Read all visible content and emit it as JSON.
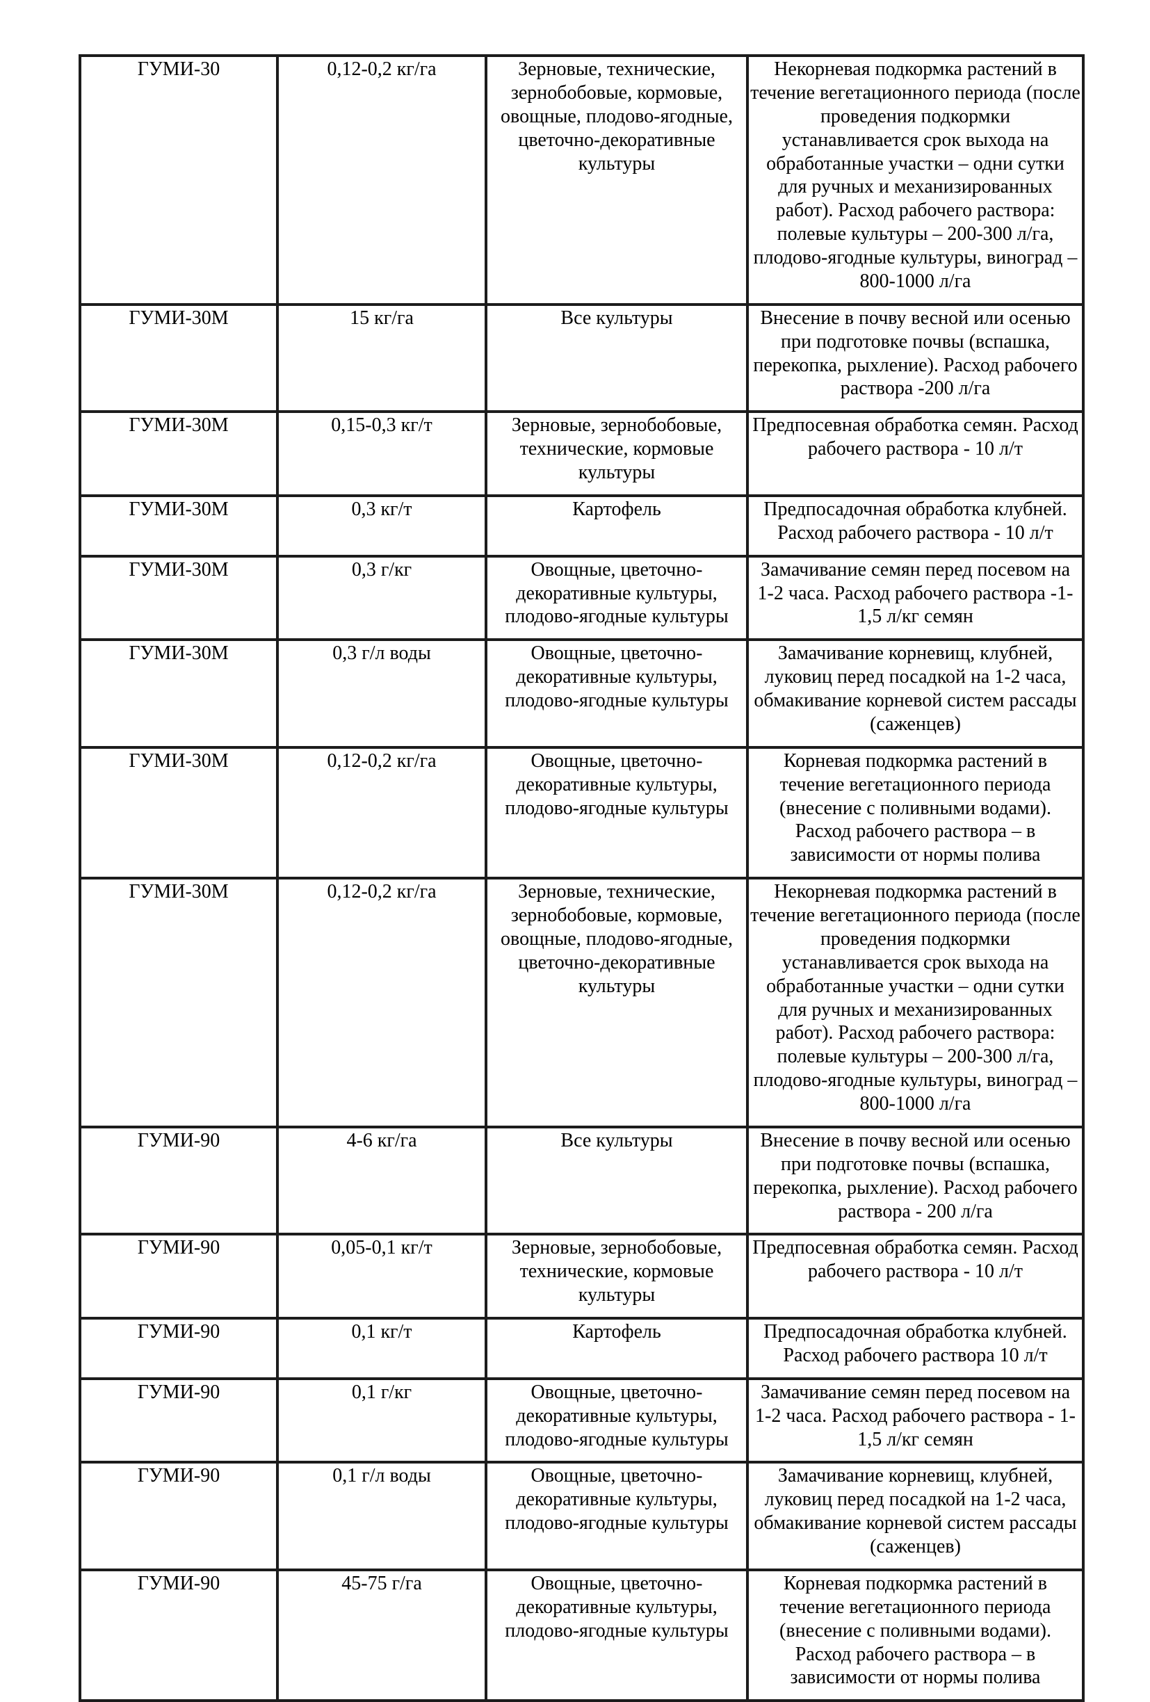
{
  "table": {
    "rows": [
      {
        "product": "ГУМИ-30",
        "dose": "0,12-0,2 кг/га",
        "crops": "Зерновые, технические, зернобобовые, кормовые, овощные, плодово-ягодные, цветочно-декоративные культуры",
        "application": "Некорневая подкормка растений в течение вегетационного периода (после проведения подкормки устанавливается срок выхода на обработанные участки – одни сутки для ручных и механизированных работ). Расход рабочего раствора: полевые культуры – 200-300 л/га, плодово-ягодные культуры, виноград – 800-1000 л/га"
      },
      {
        "product": "ГУМИ-30М",
        "dose": "15 кг/га",
        "crops": "Все культуры",
        "application": "Внесение в почву весной или осенью при подготовке почвы (вспашка, перекопка, рыхление). Расход рабочего раствора -200 л/га"
      },
      {
        "product": "ГУМИ-30М",
        "dose": "0,15-0,3 кг/т",
        "crops": "Зерновые, зернобобовые, технические, кормовые культуры",
        "application": "Предпосевная обработка семян. Расход рабочего раствора - 10 л/т"
      },
      {
        "product": "ГУМИ-30М",
        "dose": "0,3 кг/т",
        "crops": "Картофель",
        "application": "Предпосадочная обработка клубней. Расход рабочего раствора - 10 л/т"
      },
      {
        "product": "ГУМИ-30М",
        "dose": "0,3 г/кг",
        "crops": "Овощные, цветочно-декоративные культуры, плодово-ягодные культуры",
        "application": "Замачивание семян перед посевом на 1-2 часа. Расход рабочего раствора -1-1,5 л/кг семян"
      },
      {
        "product": "ГУМИ-30М",
        "dose": "0,3 г/л воды",
        "crops": "Овощные, цветочно-декоративные культуры, плодово-ягодные культуры",
        "application": "Замачивание корневищ, клубней, луковиц перед посадкой на 1-2 часа, обмакивание корневой систем рассады (саженцев)"
      },
      {
        "product": "ГУМИ-30М",
        "dose": "0,12-0,2 кг/га",
        "crops": "Овощные, цветочно-декоративные культуры, плодово-ягодные культуры",
        "application": "Корневая подкормка растений в течение вегетационного периода (внесение с поливными водами). Расход рабочего раствора – в зависимости от нормы полива"
      },
      {
        "product": "ГУМИ-30М",
        "dose": "0,12-0,2 кг/га",
        "crops": "Зерновые, технические, зернобобовые, кормовые, овощные, плодово-ягодные, цветочно-декоративные культуры",
        "application": "Некорневая подкормка растений в течение вегетационного периода (после проведения подкормки устанавливается срок выхода на обработанные участки – одни сутки для ручных и механизированных работ). Расход рабочего раствора: полевые культуры – 200-300 л/га, плодово-ягодные культуры, виноград – 800-1000 л/га"
      },
      {
        "product": "ГУМИ-90",
        "dose": "4-6 кг/га",
        "crops": "Все культуры",
        "application": "Внесение в почву весной или осенью при подготовке почвы (вспашка, перекопка, рыхление). Расход рабочего раствора - 200 л/га"
      },
      {
        "product": "ГУМИ-90",
        "dose": "0,05-0,1 кг/т",
        "crops": "Зерновые, зернобобовые, технические, кормовые культуры",
        "application": "Предпосевная обработка семян. Расход рабочего раствора - 10 л/т"
      },
      {
        "product": "ГУМИ-90",
        "dose": "0,1 кг/т",
        "crops": "Картофель",
        "application": "Предпосадочная обработка клубней. Расход рабочего раствора 10 л/т"
      },
      {
        "product": "ГУМИ-90",
        "dose": "0,1 г/кг",
        "crops": "Овощные, цветочно-декоративные культуры, плодово-ягодные культуры",
        "application": "Замачивание семян перед посевом на 1-2 часа. Расход рабочего раствора - 1-1,5 л/кг семян"
      },
      {
        "product": "ГУМИ-90",
        "dose": "0,1 г/л воды",
        "crops": "Овощные, цветочно-декоративные культуры, плодово-ягодные культуры",
        "application": "Замачивание корневищ, клубней, луковиц перед посадкой на 1-2 часа, обмакивание корневой систем рассады (саженцев)"
      },
      {
        "product": "ГУМИ-90",
        "dose": "45-75 г/га",
        "crops": "Овощные, цветочно-декоративные культуры, плодово-ягодные культуры",
        "application": "Корневая подкормка растений в течение вегетационного периода (внесение с поливными водами). Расход рабочего раствора – в зависимости от нормы полива"
      }
    ]
  }
}
